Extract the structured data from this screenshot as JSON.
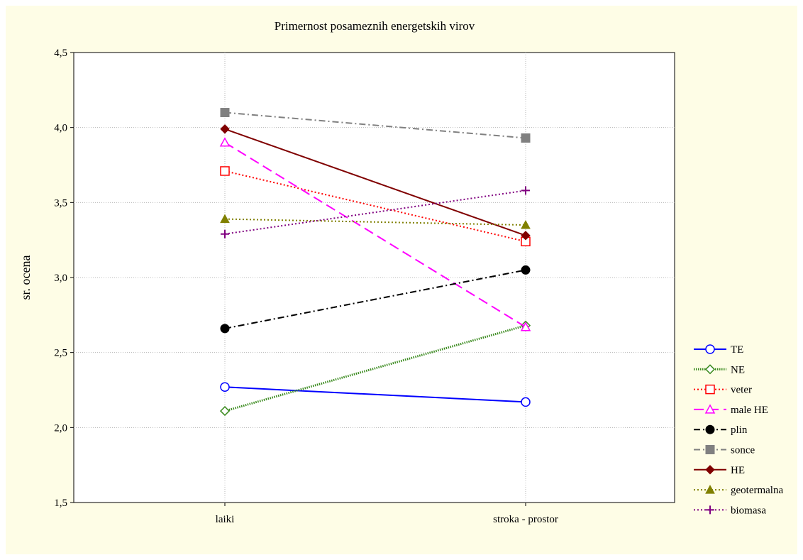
{
  "chart_data": {
    "type": "line",
    "title": "Primernost posameznih energetskih virov",
    "xlabel": "",
    "ylabel": "sr. ocena",
    "categories": [
      "laiki",
      "stroka - prostor"
    ],
    "ylim": [
      1.5,
      4.5
    ],
    "yticks": [
      "1,5",
      "2,0",
      "2,5",
      "3,0",
      "3,5",
      "4,0",
      "4,5"
    ],
    "grid": true,
    "legend_position": "right",
    "series": [
      {
        "name": "TE",
        "values": [
          2.27,
          2.17
        ],
        "color": "#0000ff",
        "dash": "solid",
        "marker": "circle-open"
      },
      {
        "name": "NE",
        "values": [
          2.11,
          2.68
        ],
        "color": "#3a8a1e",
        "dash": "dotted-thick",
        "marker": "diamond-open"
      },
      {
        "name": "veter",
        "values": [
          3.71,
          3.24
        ],
        "color": "#ff0000",
        "dash": "dotted",
        "marker": "square-open"
      },
      {
        "name": "male HE",
        "values": [
          3.9,
          2.67
        ],
        "color": "#ff00ff",
        "dash": "long-dash",
        "marker": "triangle-open"
      },
      {
        "name": "plin",
        "values": [
          2.66,
          3.05
        ],
        "color": "#000000",
        "dash": "dash-dot",
        "marker": "circle-filled"
      },
      {
        "name": "sonce",
        "values": [
          4.1,
          3.93
        ],
        "color": "#808080",
        "dash": "dash-dot",
        "marker": "square-filled"
      },
      {
        "name": "HE",
        "values": [
          3.99,
          3.28
        ],
        "color": "#800000",
        "dash": "solid",
        "marker": "diamond-filled"
      },
      {
        "name": "geotermalna",
        "values": [
          3.39,
          3.35
        ],
        "color": "#808000",
        "dash": "dotted",
        "marker": "triangle-filled"
      },
      {
        "name": "biomasa",
        "values": [
          3.29,
          3.58
        ],
        "color": "#800080",
        "dash": "dotted",
        "marker": "plus"
      }
    ]
  }
}
